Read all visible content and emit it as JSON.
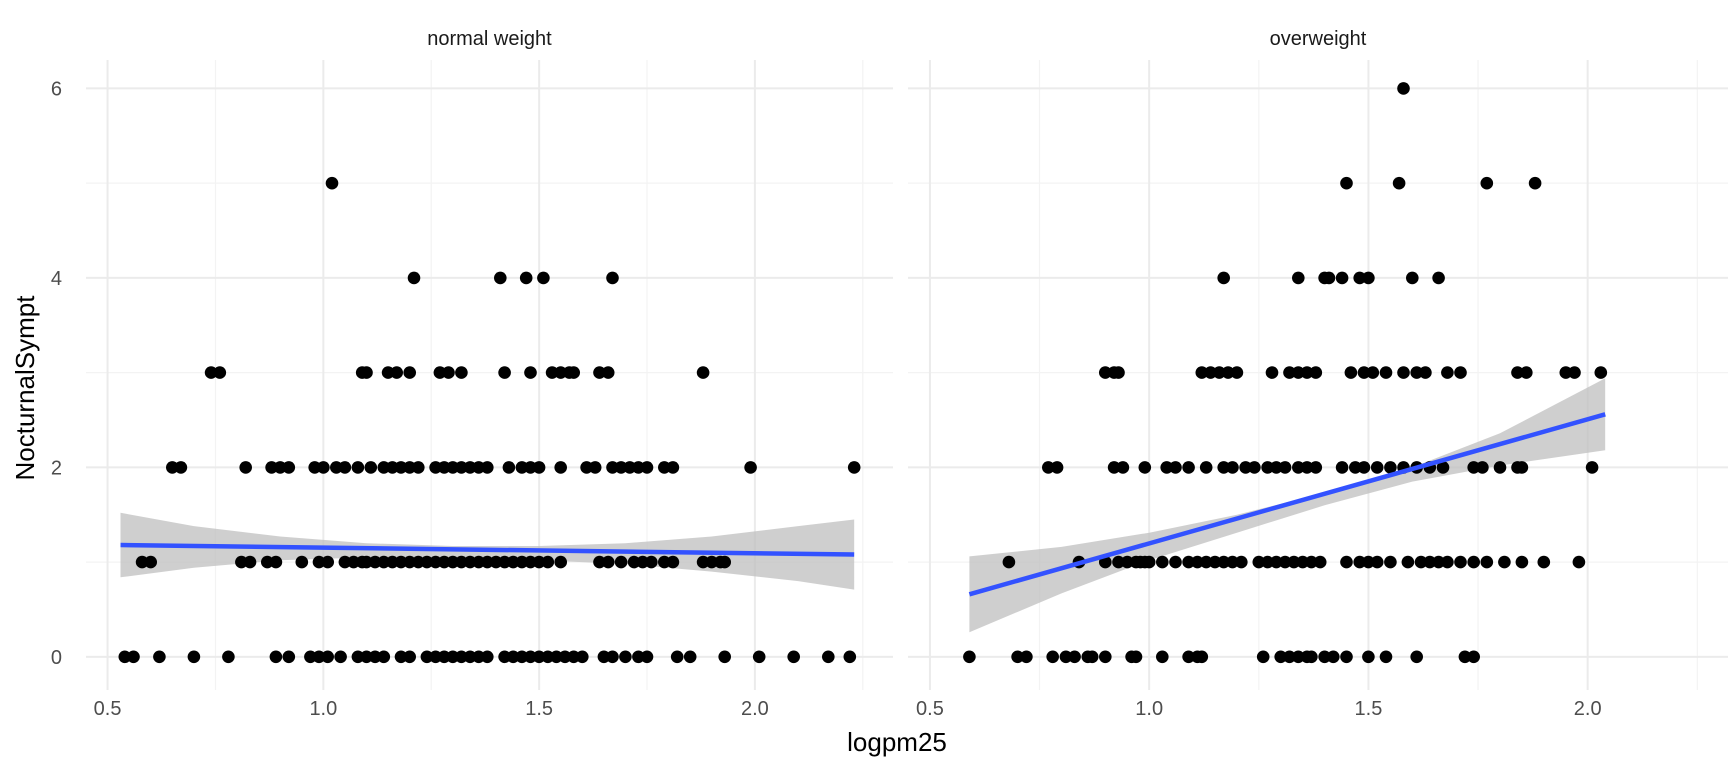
{
  "chart_data": {
    "type": "scatter",
    "xlabel": "logpm25",
    "ylabel": "NocturnalSympt",
    "xlim": [
      0.45,
      2.32
    ],
    "ylim": [
      -0.35,
      6.3
    ],
    "x_ticks": [
      "0.5",
      "1.0",
      "1.5",
      "2.0"
    ],
    "y_ticks": [
      "0",
      "2",
      "4",
      "6"
    ],
    "grid": true,
    "colors": {
      "point": "#000000",
      "fit_line": "#3352ff",
      "ribbon": "#bfbfbf",
      "grid": "#ebebeb"
    },
    "panels": [
      {
        "name": "normal weight",
        "fit": {
          "x": [
            0.53,
            2.23
          ],
          "y": [
            1.18,
            1.08
          ]
        },
        "ribbon": {
          "x": [
            0.53,
            0.7,
            0.9,
            1.1,
            1.3,
            1.5,
            1.7,
            1.9,
            2.1,
            2.23
          ],
          "lower": [
            0.84,
            0.94,
            1.02,
            1.05,
            1.05,
            1.02,
            0.98,
            0.9,
            0.8,
            0.71
          ],
          "upper": [
            1.52,
            1.38,
            1.27,
            1.2,
            1.17,
            1.17,
            1.2,
            1.27,
            1.38,
            1.45
          ]
        },
        "points": [
          [
            1.02,
            5
          ],
          [
            1.21,
            4
          ],
          [
            1.41,
            4
          ],
          [
            1.47,
            4
          ],
          [
            1.51,
            4
          ],
          [
            1.67,
            4
          ],
          [
            0.74,
            3
          ],
          [
            0.76,
            3
          ],
          [
            1.09,
            3
          ],
          [
            1.1,
            3
          ],
          [
            1.15,
            3
          ],
          [
            1.17,
            3
          ],
          [
            1.2,
            3
          ],
          [
            1.27,
            3
          ],
          [
            1.29,
            3
          ],
          [
            1.32,
            3
          ],
          [
            1.42,
            3
          ],
          [
            1.48,
            3
          ],
          [
            1.53,
            3
          ],
          [
            1.55,
            3
          ],
          [
            1.57,
            3
          ],
          [
            1.58,
            3
          ],
          [
            1.64,
            3
          ],
          [
            1.66,
            3
          ],
          [
            1.88,
            3
          ],
          [
            0.65,
            2
          ],
          [
            0.67,
            2
          ],
          [
            0.82,
            2
          ],
          [
            0.88,
            2
          ],
          [
            0.9,
            2
          ],
          [
            0.92,
            2
          ],
          [
            0.98,
            2
          ],
          [
            1.0,
            2
          ],
          [
            1.03,
            2
          ],
          [
            1.05,
            2
          ],
          [
            1.08,
            2
          ],
          [
            1.11,
            2
          ],
          [
            1.14,
            2
          ],
          [
            1.16,
            2
          ],
          [
            1.18,
            2
          ],
          [
            1.2,
            2
          ],
          [
            1.22,
            2
          ],
          [
            1.26,
            2
          ],
          [
            1.28,
            2
          ],
          [
            1.3,
            2
          ],
          [
            1.32,
            2
          ],
          [
            1.34,
            2
          ],
          [
            1.36,
            2
          ],
          [
            1.38,
            2
          ],
          [
            1.43,
            2
          ],
          [
            1.46,
            2
          ],
          [
            1.48,
            2
          ],
          [
            1.5,
            2
          ],
          [
            1.55,
            2
          ],
          [
            1.61,
            2
          ],
          [
            1.63,
            2
          ],
          [
            1.67,
            2
          ],
          [
            1.69,
            2
          ],
          [
            1.71,
            2
          ],
          [
            1.73,
            2
          ],
          [
            1.75,
            2
          ],
          [
            1.79,
            2
          ],
          [
            1.81,
            2
          ],
          [
            1.99,
            2
          ],
          [
            2.23,
            2
          ],
          [
            0.58,
            1
          ],
          [
            0.6,
            1
          ],
          [
            0.81,
            1
          ],
          [
            0.83,
            1
          ],
          [
            0.87,
            1
          ],
          [
            0.89,
            1
          ],
          [
            0.95,
            1
          ],
          [
            0.99,
            1
          ],
          [
            1.01,
            1
          ],
          [
            1.05,
            1
          ],
          [
            1.07,
            1
          ],
          [
            1.09,
            1
          ],
          [
            1.1,
            1
          ],
          [
            1.12,
            1
          ],
          [
            1.14,
            1
          ],
          [
            1.16,
            1
          ],
          [
            1.18,
            1
          ],
          [
            1.2,
            1
          ],
          [
            1.22,
            1
          ],
          [
            1.24,
            1
          ],
          [
            1.26,
            1
          ],
          [
            1.28,
            1
          ],
          [
            1.3,
            1
          ],
          [
            1.32,
            1
          ],
          [
            1.34,
            1
          ],
          [
            1.36,
            1
          ],
          [
            1.38,
            1
          ],
          [
            1.4,
            1
          ],
          [
            1.42,
            1
          ],
          [
            1.44,
            1
          ],
          [
            1.46,
            1
          ],
          [
            1.48,
            1
          ],
          [
            1.5,
            1
          ],
          [
            1.52,
            1
          ],
          [
            1.55,
            1
          ],
          [
            1.64,
            1
          ],
          [
            1.66,
            1
          ],
          [
            1.69,
            1
          ],
          [
            1.72,
            1
          ],
          [
            1.74,
            1
          ],
          [
            1.76,
            1
          ],
          [
            1.79,
            1
          ],
          [
            1.81,
            1
          ],
          [
            1.88,
            1
          ],
          [
            1.9,
            1
          ],
          [
            1.92,
            1
          ],
          [
            1.93,
            1
          ],
          [
            0.54,
            0
          ],
          [
            0.56,
            0
          ],
          [
            0.62,
            0
          ],
          [
            0.7,
            0
          ],
          [
            0.78,
            0
          ],
          [
            0.89,
            0
          ],
          [
            0.92,
            0
          ],
          [
            0.97,
            0
          ],
          [
            0.99,
            0
          ],
          [
            1.01,
            0
          ],
          [
            1.04,
            0
          ],
          [
            1.08,
            0
          ],
          [
            1.1,
            0
          ],
          [
            1.12,
            0
          ],
          [
            1.14,
            0
          ],
          [
            1.18,
            0
          ],
          [
            1.2,
            0
          ],
          [
            1.24,
            0
          ],
          [
            1.26,
            0
          ],
          [
            1.28,
            0
          ],
          [
            1.3,
            0
          ],
          [
            1.32,
            0
          ],
          [
            1.34,
            0
          ],
          [
            1.36,
            0
          ],
          [
            1.38,
            0
          ],
          [
            1.42,
            0
          ],
          [
            1.44,
            0
          ],
          [
            1.46,
            0
          ],
          [
            1.48,
            0
          ],
          [
            1.5,
            0
          ],
          [
            1.52,
            0
          ],
          [
            1.54,
            0
          ],
          [
            1.56,
            0
          ],
          [
            1.58,
            0
          ],
          [
            1.6,
            0
          ],
          [
            1.65,
            0
          ],
          [
            1.67,
            0
          ],
          [
            1.7,
            0
          ],
          [
            1.73,
            0
          ],
          [
            1.75,
            0
          ],
          [
            1.82,
            0
          ],
          [
            1.85,
            0
          ],
          [
            1.93,
            0
          ],
          [
            2.01,
            0
          ],
          [
            2.09,
            0
          ],
          [
            2.17,
            0
          ],
          [
            2.22,
            0
          ]
        ]
      },
      {
        "name": "overweight",
        "fit": {
          "x": [
            0.59,
            2.04
          ],
          "y": [
            0.66,
            2.56
          ]
        },
        "ribbon": {
          "x": [
            0.59,
            0.8,
            1.0,
            1.2,
            1.4,
            1.6,
            1.8,
            2.04
          ],
          "lower": [
            0.26,
            0.67,
            1.02,
            1.31,
            1.6,
            1.85,
            2.02,
            2.18
          ],
          "upper": [
            1.06,
            1.16,
            1.31,
            1.5,
            1.73,
            2.0,
            2.36,
            2.94
          ]
        },
        "points": [
          [
            1.58,
            6
          ],
          [
            1.45,
            5
          ],
          [
            1.57,
            5
          ],
          [
            1.77,
            5
          ],
          [
            1.88,
            5
          ],
          [
            1.17,
            4
          ],
          [
            1.34,
            4
          ],
          [
            1.4,
            4
          ],
          [
            1.41,
            4
          ],
          [
            1.44,
            4
          ],
          [
            1.48,
            4
          ],
          [
            1.5,
            4
          ],
          [
            1.6,
            4
          ],
          [
            1.66,
            4
          ],
          [
            0.9,
            3
          ],
          [
            0.92,
            3
          ],
          [
            0.93,
            3
          ],
          [
            1.12,
            3
          ],
          [
            1.14,
            3
          ],
          [
            1.16,
            3
          ],
          [
            1.18,
            3
          ],
          [
            1.2,
            3
          ],
          [
            1.28,
            3
          ],
          [
            1.32,
            3
          ],
          [
            1.34,
            3
          ],
          [
            1.36,
            3
          ],
          [
            1.38,
            3
          ],
          [
            1.46,
            3
          ],
          [
            1.49,
            3
          ],
          [
            1.51,
            3
          ],
          [
            1.54,
            3
          ],
          [
            1.58,
            3
          ],
          [
            1.61,
            3
          ],
          [
            1.63,
            3
          ],
          [
            1.68,
            3
          ],
          [
            1.71,
            3
          ],
          [
            1.84,
            3
          ],
          [
            1.86,
            3
          ],
          [
            1.95,
            3
          ],
          [
            1.97,
            3
          ],
          [
            2.03,
            3
          ],
          [
            0.77,
            2
          ],
          [
            0.79,
            2
          ],
          [
            0.92,
            2
          ],
          [
            0.94,
            2
          ],
          [
            0.99,
            2
          ],
          [
            1.04,
            2
          ],
          [
            1.06,
            2
          ],
          [
            1.09,
            2
          ],
          [
            1.13,
            2
          ],
          [
            1.17,
            2
          ],
          [
            1.19,
            2
          ],
          [
            1.22,
            2
          ],
          [
            1.24,
            2
          ],
          [
            1.27,
            2
          ],
          [
            1.29,
            2
          ],
          [
            1.31,
            2
          ],
          [
            1.34,
            2
          ],
          [
            1.36,
            2
          ],
          [
            1.38,
            2
          ],
          [
            1.44,
            2
          ],
          [
            1.47,
            2
          ],
          [
            1.49,
            2
          ],
          [
            1.52,
            2
          ],
          [
            1.55,
            2
          ],
          [
            1.58,
            2
          ],
          [
            1.61,
            2
          ],
          [
            1.64,
            2
          ],
          [
            1.67,
            2
          ],
          [
            1.74,
            2
          ],
          [
            1.76,
            2
          ],
          [
            1.8,
            2
          ],
          [
            1.84,
            2
          ],
          [
            1.85,
            2
          ],
          [
            2.01,
            2
          ],
          [
            0.68,
            1
          ],
          [
            0.84,
            1
          ],
          [
            0.9,
            1
          ],
          [
            0.93,
            1
          ],
          [
            0.95,
            1
          ],
          [
            0.97,
            1
          ],
          [
            0.98,
            1
          ],
          [
            0.99,
            1
          ],
          [
            1.0,
            1
          ],
          [
            1.03,
            1
          ],
          [
            1.06,
            1
          ],
          [
            1.09,
            1
          ],
          [
            1.11,
            1
          ],
          [
            1.13,
            1
          ],
          [
            1.15,
            1
          ],
          [
            1.17,
            1
          ],
          [
            1.19,
            1
          ],
          [
            1.21,
            1
          ],
          [
            1.25,
            1
          ],
          [
            1.27,
            1
          ],
          [
            1.29,
            1
          ],
          [
            1.31,
            1
          ],
          [
            1.33,
            1
          ],
          [
            1.35,
            1
          ],
          [
            1.37,
            1
          ],
          [
            1.39,
            1
          ],
          [
            1.45,
            1
          ],
          [
            1.48,
            1
          ],
          [
            1.5,
            1
          ],
          [
            1.52,
            1
          ],
          [
            1.55,
            1
          ],
          [
            1.59,
            1
          ],
          [
            1.62,
            1
          ],
          [
            1.64,
            1
          ],
          [
            1.66,
            1
          ],
          [
            1.68,
            1
          ],
          [
            1.71,
            1
          ],
          [
            1.74,
            1
          ],
          [
            1.77,
            1
          ],
          [
            1.81,
            1
          ],
          [
            1.85,
            1
          ],
          [
            1.9,
            1
          ],
          [
            1.98,
            1
          ],
          [
            0.59,
            0
          ],
          [
            0.7,
            0
          ],
          [
            0.72,
            0
          ],
          [
            0.78,
            0
          ],
          [
            0.81,
            0
          ],
          [
            0.83,
            0
          ],
          [
            0.86,
            0
          ],
          [
            0.87,
            0
          ],
          [
            0.9,
            0
          ],
          [
            0.96,
            0
          ],
          [
            0.97,
            0
          ],
          [
            1.03,
            0
          ],
          [
            1.09,
            0
          ],
          [
            1.11,
            0
          ],
          [
            1.12,
            0
          ],
          [
            1.26,
            0
          ],
          [
            1.3,
            0
          ],
          [
            1.32,
            0
          ],
          [
            1.34,
            0
          ],
          [
            1.36,
            0
          ],
          [
            1.37,
            0
          ],
          [
            1.4,
            0
          ],
          [
            1.42,
            0
          ],
          [
            1.45,
            0
          ],
          [
            1.5,
            0
          ],
          [
            1.54,
            0
          ],
          [
            1.61,
            0
          ],
          [
            1.72,
            0
          ],
          [
            1.74,
            0
          ]
        ]
      }
    ]
  }
}
